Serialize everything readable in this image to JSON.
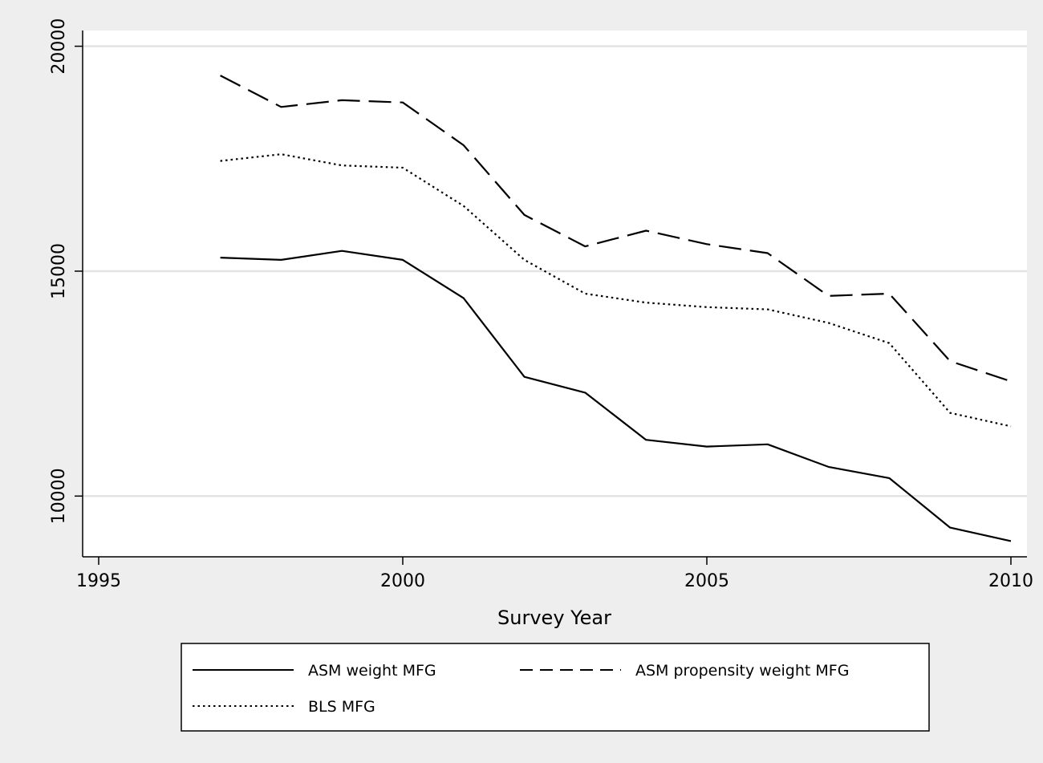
{
  "chart_data": {
    "type": "line",
    "title": "",
    "xlabel": "Survey Year",
    "ylabel": "",
    "xlim": [
      1995,
      2010
    ],
    "ylim": [
      8650,
      20350
    ],
    "xticks": [
      1995,
      2000,
      2005,
      2010
    ],
    "yticks": [
      10000,
      15000,
      20000
    ],
    "grid": "horizontal",
    "legend_position": "bottom",
    "x": [
      1997,
      1998,
      1999,
      2000,
      2001,
      2002,
      2003,
      2004,
      2005,
      2006,
      2007,
      2008,
      2009,
      2010
    ],
    "series": [
      {
        "name": "ASM weight MFG",
        "style": "solid",
        "values": [
          15300,
          15250,
          15450,
          15250,
          14400,
          12650,
          12300,
          11250,
          11100,
          11150,
          10650,
          10400,
          9300,
          9000
        ]
      },
      {
        "name": "ASM propensity weight MFG",
        "style": "dashed",
        "values": [
          19350,
          18650,
          18800,
          18750,
          17800,
          16250,
          15550,
          15900,
          15600,
          15400,
          14450,
          14500,
          13000,
          12550
        ]
      },
      {
        "name": "BLS MFG",
        "style": "dotted",
        "values": [
          17450,
          17600,
          17350,
          17300,
          16450,
          15250,
          14500,
          14300,
          14200,
          14150,
          13850,
          13400,
          11850,
          11550
        ]
      }
    ]
  }
}
